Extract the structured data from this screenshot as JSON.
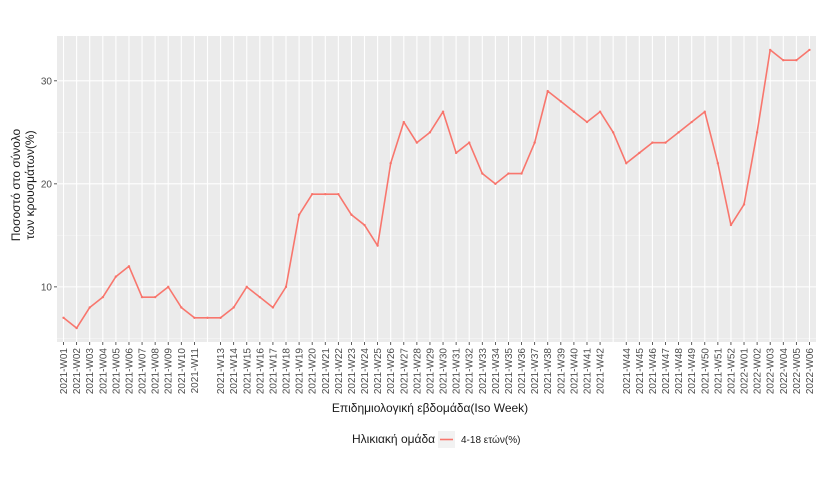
{
  "chart_data": {
    "type": "line",
    "x": [
      "2021-W01",
      "2021-W02",
      "2021-W03",
      "2021-W04",
      "2021-W05",
      "2021-W06",
      "2021-W07",
      "2021-W08",
      "2021-W09",
      "2021-W10",
      "2021-W11",
      "2021-W12",
      "2021-W13",
      "2021-W14",
      "2021-W15",
      "2021-W16",
      "2021-W17",
      "2021-W18",
      "2021-W19",
      "2021-W20",
      "2021-W21",
      "2021-W22",
      "2021-W23",
      "2021-W24",
      "2021-W25",
      "2021-W26",
      "2021-W27",
      "2021-W28",
      "2021-W29",
      "2021-W30",
      "2021-W31",
      "2021-W32",
      "2021-W33",
      "2021-W34",
      "2021-W35",
      "2021-W36",
      "2021-W37",
      "2021-W38",
      "2021-W39",
      "2021-W40",
      "2021-W41",
      "2021-W42",
      "2021-W43",
      "2021-W44",
      "2021-W45",
      "2021-W46",
      "2021-W47",
      "2021-W48",
      "2021-W49",
      "2021-W50",
      "2021-W51",
      "2021-W52",
      "2022-W01",
      "2022-W02",
      "2022-W03",
      "2022-W04",
      "2022-W05",
      "2022-W06"
    ],
    "x_tick_labels": [
      "2021-W01",
      "2021-W02",
      "2021-W03",
      "2021-W04",
      "2021-W05",
      "2021-W06",
      "2021-W07",
      "2021-W08",
      "2021-W09",
      "2021-W10",
      "2021-W11",
      "2021-W13",
      "2021-W14",
      "2021-W15",
      "2021-W16",
      "2021-W17",
      "2021-W18",
      "2021-W19",
      "2021-W20",
      "2021-W21",
      "2021-W22",
      "2021-W23",
      "2021-W24",
      "2021-W25",
      "2021-W26",
      "2021-W27",
      "2021-W28",
      "2021-W29",
      "2021-W30",
      "2021-W31",
      "2021-W32",
      "2021-W33",
      "2021-W34",
      "2021-W35",
      "2021-W36",
      "2021-W37",
      "2021-W38",
      "2021-W39",
      "2021-W40",
      "2021-W41",
      "2021-W42",
      "2021-W44",
      "2021-W45",
      "2021-W46",
      "2021-W47",
      "2021-W48",
      "2021-W49",
      "2021-W50",
      "2021-W51",
      "2021-W52",
      "2022-W01",
      "2022-W02",
      "2022-W03",
      "2022-W04",
      "2022-W05",
      "2022-W06"
    ],
    "series": [
      {
        "name": "4-18 ετών(%)",
        "color": "#f8766d",
        "values": [
          7,
          6,
          8,
          9,
          11,
          12,
          9,
          9,
          10,
          8,
          7,
          7,
          7,
          8,
          10,
          9,
          8,
          10,
          17,
          19,
          19,
          19,
          17,
          16,
          14,
          22,
          26,
          24,
          25,
          27,
          23,
          24,
          21,
          20,
          21,
          21,
          24,
          29,
          28,
          27,
          26,
          27,
          25,
          22,
          23,
          24,
          24,
          25,
          26,
          27,
          22,
          16,
          18,
          25,
          33,
          32,
          32,
          33
        ]
      }
    ],
    "xlabel": "Επιδημιολογική εβδομάδα(Iso Week)",
    "ylabel_lines": [
      "Ποσοστό στο σύνολο",
      "των κρουσμάτων(%)"
    ],
    "y_ticks": [
      10,
      20,
      30
    ],
    "ylim": [
      4.65,
      34.35
    ],
    "legend_title": "Ηλικιακή ομάδα",
    "legend_position": "bottom",
    "grid": true,
    "panel_background": "#ebebeb"
  }
}
